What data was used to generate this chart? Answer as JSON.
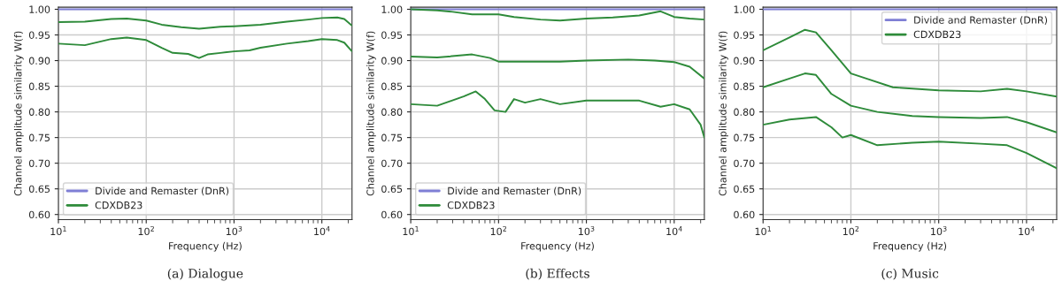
{
  "chart_data": [
    {
      "type": "line",
      "xlabel": "Frequency (Hz)",
      "ylabel": "Channel amplitude similarity W(f)",
      "annotations": [
        "(a) Dialogue"
      ],
      "log": "x",
      "grid": true,
      "legend": "bottom left",
      "xlim": [
        10,
        22050
      ],
      "xticks": [
        {
          "value": 10,
          "label": "10$^{1}$"
        },
        {
          "value": 100,
          "label": "10$^{2}$"
        },
        {
          "value": 1000,
          "label": "10$^{3}$"
        },
        {
          "value": 10000,
          "label": "10$^{4}$"
        }
      ],
      "ylim": [
        0.59,
        1.004
      ],
      "yticks": [
        {
          "value": 0.6,
          "label": "0.60"
        },
        {
          "value": 0.65,
          "label": "0.65"
        },
        {
          "value": 0.7,
          "label": "0.70"
        },
        {
          "value": 0.75,
          "label": "0.75"
        },
        {
          "value": 0.8,
          "label": "0.80"
        },
        {
          "value": 0.85,
          "label": "0.85"
        },
        {
          "value": 0.9,
          "label": "0.90"
        },
        {
          "value": 0.95,
          "label": "0.95"
        },
        {
          "value": 1.0,
          "label": "1.00"
        }
      ],
      "series": [
        {
          "name": "Divide and Remaster (DnR)",
          "color": "#7f7fd5",
          "x": [
            10,
            22050
          ],
          "values": [
            1.0,
            1.0
          ]
        },
        {
          "name": "CDXDB23",
          "color": "#2e8b3a",
          "x": [
            10,
            20,
            40,
            60,
            100,
            150,
            250,
            400,
            700,
            1000,
            2000,
            4000,
            7000,
            10000,
            15000,
            18000,
            22050
          ],
          "values": [
            0.975,
            0.976,
            0.981,
            0.982,
            0.978,
            0.97,
            0.965,
            0.962,
            0.966,
            0.967,
            0.97,
            0.976,
            0.98,
            0.983,
            0.984,
            0.981,
            0.968
          ]
        },
        {
          "color": "#2e8b3a",
          "x": [
            10,
            20,
            40,
            60,
            100,
            150,
            200,
            300,
            400,
            500,
            700,
            1000,
            1500,
            2000,
            4000,
            7000,
            10000,
            15000,
            18000,
            22050
          ],
          "values": [
            0.933,
            0.93,
            0.942,
            0.945,
            0.94,
            0.925,
            0.915,
            0.913,
            0.905,
            0.912,
            0.915,
            0.918,
            0.92,
            0.925,
            0.933,
            0.938,
            0.942,
            0.94,
            0.935,
            0.918
          ]
        }
      ]
    },
    {
      "type": "line",
      "xlabel": "Frequency (Hz)",
      "ylabel": "Channel amplitude similarity W(f)",
      "annotations": [
        "(b) Effects"
      ],
      "log": "x",
      "grid": true,
      "legend": "bottom left",
      "xlim": [
        10,
        22050
      ],
      "xticks": [
        {
          "value": 10,
          "label": "10$^{1}$"
        },
        {
          "value": 100,
          "label": "10$^{2}$"
        },
        {
          "value": 1000,
          "label": "10$^{3}$"
        },
        {
          "value": 10000,
          "label": "10$^{4}$"
        }
      ],
      "ylim": [
        0.59,
        1.004
      ],
      "yticks": [
        {
          "value": 0.6,
          "label": "0.60"
        },
        {
          "value": 0.65,
          "label": "0.65"
        },
        {
          "value": 0.7,
          "label": "0.70"
        },
        {
          "value": 0.75,
          "label": "0.75"
        },
        {
          "value": 0.8,
          "label": "0.80"
        },
        {
          "value": 0.85,
          "label": "0.85"
        },
        {
          "value": 0.9,
          "label": "0.90"
        },
        {
          "value": 0.95,
          "label": "0.95"
        },
        {
          "value": 1.0,
          "label": "1.00"
        }
      ],
      "series": [
        {
          "name": "Divide and Remaster (DnR)",
          "color": "#7f7fd5",
          "x": [
            10,
            22050
          ],
          "values": [
            1.0,
            1.0
          ]
        },
        {
          "name": "CDXDB23",
          "color": "#2e8b3a",
          "x": [
            10,
            20,
            30,
            50,
            100,
            150,
            300,
            500,
            1000,
            2000,
            4000,
            7000,
            10000,
            15000,
            22050
          ],
          "values": [
            1.0,
            0.998,
            0.995,
            0.99,
            0.99,
            0.985,
            0.98,
            0.978,
            0.982,
            0.984,
            0.988,
            0.996,
            0.985,
            0.982,
            0.98
          ]
        },
        {
          "color": "#2e8b3a",
          "x": [
            10,
            20,
            50,
            80,
            100,
            200,
            500,
            1000,
            3000,
            6000,
            10000,
            15000,
            22050
          ],
          "values": [
            0.908,
            0.906,
            0.912,
            0.905,
            0.898,
            0.898,
            0.898,
            0.9,
            0.902,
            0.9,
            0.897,
            0.888,
            0.865
          ]
        },
        {
          "color": "#2e8b3a",
          "x": [
            10,
            20,
            40,
            55,
            70,
            90,
            120,
            150,
            200,
            300,
            500,
            1000,
            2000,
            4000,
            7000,
            10000,
            15000,
            20000,
            22050
          ],
          "values": [
            0.815,
            0.812,
            0.83,
            0.84,
            0.825,
            0.803,
            0.8,
            0.825,
            0.818,
            0.825,
            0.815,
            0.822,
            0.822,
            0.822,
            0.81,
            0.815,
            0.805,
            0.775,
            0.75
          ]
        }
      ]
    },
    {
      "type": "line",
      "xlabel": "Frequency (Hz)",
      "ylabel": "Channel amplitude similarity W(f)",
      "annotations": [
        "(c) Music"
      ],
      "log": "x",
      "grid": true,
      "legend": "top right",
      "xlim": [
        10,
        22050
      ],
      "xticks": [
        {
          "value": 10,
          "label": "10$^{1}$"
        },
        {
          "value": 100,
          "label": "10$^{2}$"
        },
        {
          "value": 1000,
          "label": "10$^{3}$"
        },
        {
          "value": 10000,
          "label": "10$^{4}$"
        }
      ],
      "ylim": [
        0.59,
        1.004
      ],
      "yticks": [
        {
          "value": 0.6,
          "label": "0.60"
        },
        {
          "value": 0.65,
          "label": "0.65"
        },
        {
          "value": 0.7,
          "label": "0.70"
        },
        {
          "value": 0.75,
          "label": "0.75"
        },
        {
          "value": 0.8,
          "label": "0.80"
        },
        {
          "value": 0.85,
          "label": "0.85"
        },
        {
          "value": 0.9,
          "label": "0.90"
        },
        {
          "value": 0.95,
          "label": "0.95"
        },
        {
          "value": 1.0,
          "label": "1.00"
        }
      ],
      "series": [
        {
          "name": "Divide and Remaster (DnR)",
          "color": "#7f7fd5",
          "x": [
            10,
            22050
          ],
          "values": [
            1.0,
            1.0
          ]
        },
        {
          "name": "CDXDB23",
          "color": "#2e8b3a",
          "x": [
            10,
            20,
            30,
            40,
            60,
            100,
            150,
            300,
            1000,
            3000,
            6000,
            10000,
            22050
          ],
          "values": [
            0.92,
            0.945,
            0.96,
            0.955,
            0.92,
            0.875,
            0.865,
            0.848,
            0.842,
            0.84,
            0.845,
            0.84,
            0.83
          ]
        },
        {
          "color": "#2e8b3a",
          "x": [
            10,
            20,
            30,
            40,
            60,
            100,
            200,
            500,
            1000,
            3000,
            6000,
            10000,
            22050
          ],
          "values": [
            0.848,
            0.865,
            0.875,
            0.872,
            0.835,
            0.812,
            0.8,
            0.792,
            0.79,
            0.788,
            0.79,
            0.78,
            0.76
          ]
        },
        {
          "color": "#2e8b3a",
          "x": [
            10,
            20,
            40,
            60,
            80,
            100,
            200,
            500,
            1000,
            3000,
            6000,
            10000,
            22050
          ],
          "values": [
            0.775,
            0.785,
            0.79,
            0.77,
            0.75,
            0.755,
            0.735,
            0.74,
            0.742,
            0.738,
            0.735,
            0.72,
            0.69
          ]
        }
      ]
    }
  ]
}
